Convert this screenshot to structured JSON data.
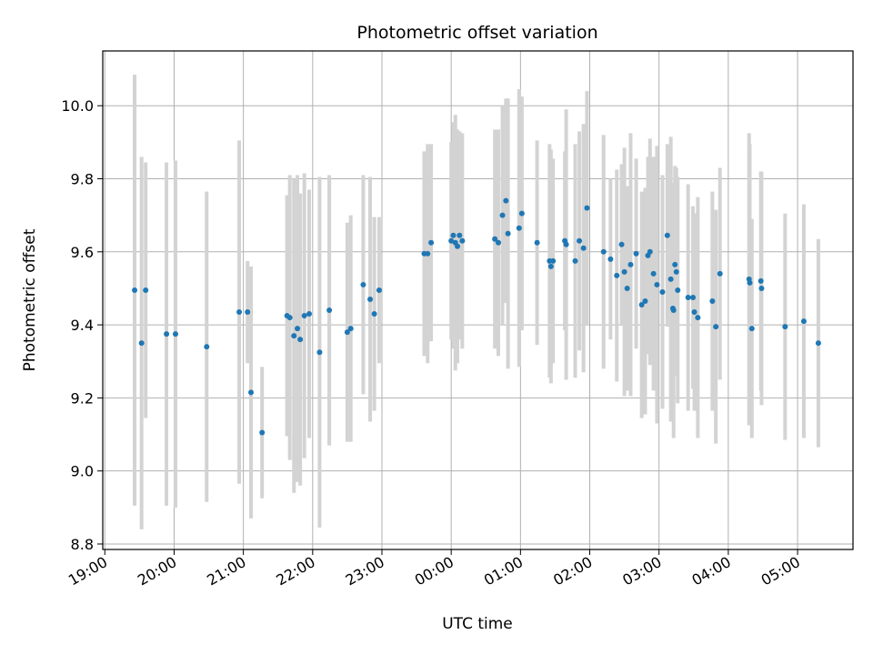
{
  "chart_data": {
    "type": "scatter",
    "title": "Photometric offset variation",
    "xlabel": "UTC time",
    "ylabel": "Photometric offset",
    "x_unit": "hours since 19:00 UTC",
    "xlim": [
      -0.03,
      10.8
    ],
    "ylim": [
      8.785,
      10.15
    ],
    "grid": true,
    "x_ticks": [
      {
        "value": 0,
        "label": "19:00"
      },
      {
        "value": 1,
        "label": "20:00"
      },
      {
        "value": 2,
        "label": "21:00"
      },
      {
        "value": 3,
        "label": "22:00"
      },
      {
        "value": 4,
        "label": "23:00"
      },
      {
        "value": 5,
        "label": "00:00"
      },
      {
        "value": 6,
        "label": "01:00"
      },
      {
        "value": 7,
        "label": "02:00"
      },
      {
        "value": 8,
        "label": "03:00"
      },
      {
        "value": 9,
        "label": "04:00"
      },
      {
        "value": 10,
        "label": "05:00"
      }
    ],
    "y_ticks": [
      {
        "value": 8.8,
        "label": "8.8"
      },
      {
        "value": 9.0,
        "label": "9.0"
      },
      {
        "value": 9.2,
        "label": "9.2"
      },
      {
        "value": 9.4,
        "label": "9.4"
      },
      {
        "value": 9.6,
        "label": "9.6"
      },
      {
        "value": 9.8,
        "label": "9.8"
      },
      {
        "value": 10.0,
        "label": "10.0"
      }
    ],
    "colors": {
      "point": "#1f77b4",
      "errorbar": "#d3d3d3",
      "grid": "#b0b0b0",
      "axis": "#000000"
    },
    "series": [
      {
        "name": "offset",
        "x": [
          0.43,
          0.53,
          0.59,
          0.89,
          1.02,
          1.47,
          1.94,
          2.06,
          2.11,
          2.27,
          2.63,
          2.67,
          2.73,
          2.78,
          2.82,
          2.88,
          2.95,
          3.1,
          3.24,
          3.5,
          3.55,
          3.73,
          3.83,
          3.89,
          3.96,
          4.61,
          4.66,
          4.71,
          5.0,
          5.03,
          5.06,
          5.09,
          5.12,
          5.16,
          5.63,
          5.68,
          5.74,
          5.79,
          5.82,
          5.98,
          6.02,
          6.24,
          6.42,
          6.44,
          6.47,
          6.64,
          6.66,
          6.79,
          6.85,
          6.91,
          6.96,
          7.2,
          7.3,
          7.39,
          7.46,
          7.5,
          7.54,
          7.59,
          7.67,
          7.75,
          7.8,
          7.84,
          7.87,
          7.92,
          7.97,
          8.05,
          8.12,
          8.17,
          8.2,
          8.21,
          8.23,
          8.25,
          8.27,
          8.42,
          8.49,
          8.51,
          8.56,
          8.77,
          8.82,
          8.88,
          9.3,
          9.31,
          9.34,
          9.47,
          9.48,
          9.82,
          10.09,
          10.3
        ],
        "y": [
          9.495,
          9.35,
          9.495,
          9.375,
          9.375,
          9.34,
          9.435,
          9.435,
          9.215,
          9.105,
          9.425,
          9.42,
          9.37,
          9.39,
          9.36,
          9.425,
          9.43,
          9.325,
          9.44,
          9.38,
          9.39,
          9.51,
          9.47,
          9.43,
          9.495,
          9.595,
          9.595,
          9.625,
          9.63,
          9.645,
          9.625,
          9.615,
          9.645,
          9.63,
          9.635,
          9.625,
          9.7,
          9.74,
          9.65,
          9.665,
          9.705,
          9.625,
          9.575,
          9.56,
          9.575,
          9.63,
          9.62,
          9.575,
          9.63,
          9.61,
          9.72,
          9.6,
          9.58,
          9.535,
          9.62,
          9.545,
          9.5,
          9.565,
          9.595,
          9.455,
          9.465,
          9.59,
          9.6,
          9.54,
          9.51,
          9.49,
          9.645,
          9.525,
          9.445,
          9.44,
          9.565,
          9.545,
          9.495,
          9.475,
          9.475,
          9.435,
          9.42,
          9.465,
          9.395,
          9.54,
          9.525,
          9.515,
          9.39,
          9.52,
          9.5,
          9.395,
          9.41,
          9.35
        ],
        "err": [
          0.59,
          0.51,
          0.35,
          0.47,
          0.475,
          0.425,
          0.47,
          0.14,
          0.345,
          0.18,
          0.33,
          0.39,
          0.43,
          0.42,
          0.4,
          0.39,
          0.34,
          0.48,
          0.37,
          0.3,
          0.31,
          0.3,
          0.335,
          0.265,
          0.2,
          0.28,
          0.3,
          0.27,
          0.27,
          0.31,
          0.35,
          0.32,
          0.285,
          0.295,
          0.3,
          0.31,
          0.3,
          0.28,
          0.37,
          0.38,
          0.32,
          0.28,
          0.32,
          0.32,
          0.28,
          0.245,
          0.37,
          0.32,
          0.3,
          0.34,
          0.32,
          0.32,
          0.22,
          0.29,
          0.22,
          0.34,
          0.28,
          0.36,
          0.26,
          0.31,
          0.31,
          0.27,
          0.31,
          0.32,
          0.38,
          0.32,
          0.25,
          0.39,
          0.31,
          0.35,
          0.27,
          0.285,
          0.31,
          0.31,
          0.25,
          0.27,
          0.33,
          0.3,
          0.32,
          0.29,
          0.4,
          0.38,
          0.3,
          0.3,
          0.32,
          0.31,
          0.32,
          0.285
        ]
      }
    ]
  }
}
